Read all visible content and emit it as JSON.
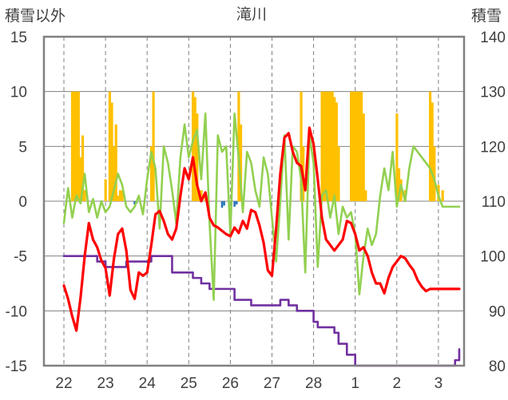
{
  "chart_data": {
    "type": "line",
    "title": "滝川",
    "left_axis_label": "積雪以外",
    "right_axis_label": "積雪",
    "left_axis": {
      "min": -15,
      "max": 15,
      "ticks": [
        "15",
        "10",
        "5",
        "0",
        "-5",
        "-10",
        "-15"
      ]
    },
    "right_axis": {
      "min": 80,
      "max": 140,
      "ticks": [
        "140",
        "130",
        "120",
        "110",
        "100",
        "90",
        "80"
      ]
    },
    "x_days": [
      "22",
      "23",
      "24",
      "25",
      "26",
      "27",
      "28",
      "1",
      "2",
      "3"
    ],
    "colors": {
      "temperature_max": "#ff0000",
      "temperature": "#92d050",
      "snowfall": "#ffc000",
      "precip_negative": "#2e75b6",
      "snow_depth": "#7030a0",
      "frame": "#808080",
      "grid": "#808080"
    },
    "series": [
      {
        "key": "red",
        "axis": "left",
        "x": [
          0,
          0.1,
          0.2,
          0.3,
          0.4,
          0.5,
          0.6,
          0.7,
          0.8,
          0.9,
          1.0,
          1.1,
          1.2,
          1.3,
          1.4,
          1.5,
          1.6,
          1.7,
          1.8,
          1.9,
          2.0,
          2.1,
          2.2,
          2.3,
          2.4,
          2.5,
          2.6,
          2.7,
          2.8,
          2.9,
          3.0,
          3.1,
          3.2,
          3.3,
          3.4,
          3.5,
          3.6,
          3.7,
          3.8,
          3.9,
          4.0,
          4.1,
          4.2,
          4.3,
          4.4,
          4.5,
          4.6,
          4.7,
          4.8,
          4.9,
          5.0,
          5.1,
          5.2,
          5.3,
          5.4,
          5.5,
          5.6,
          5.7,
          5.8,
          5.9,
          6.0,
          6.1,
          6.2,
          6.3,
          6.4,
          6.5,
          6.6,
          6.7,
          6.8,
          6.9,
          7.0,
          7.1,
          7.2,
          7.3,
          7.4,
          7.5,
          7.6,
          7.7,
          7.8,
          7.9,
          8.0,
          8.1,
          8.2,
          8.3,
          8.4,
          8.5,
          8.6,
          8.7,
          8.8,
          8.9,
          9.0,
          9.1,
          9.2,
          9.3,
          9.4,
          9.5
        ],
        "y": [
          -7.7,
          -8.9,
          -10.5,
          -11.8,
          -8.8,
          -5.0,
          -2.0,
          -3.5,
          -4.2,
          -5.4,
          -6.1,
          -8.6,
          -5.3,
          -3.0,
          -2.5,
          -4.5,
          -8.1,
          -8.9,
          -6.5,
          -6.8,
          -6.5,
          -4.0,
          -1.2,
          -0.9,
          -1.8,
          -3.0,
          -3.5,
          -2.5,
          0.5,
          3.0,
          2.0,
          4.0,
          1.5,
          0.0,
          0.8,
          -1.5,
          -2.2,
          -2.4,
          -2.7,
          -3.0,
          -3.2,
          -2.4,
          -2.9,
          -1.8,
          -2.5,
          -0.8,
          -1.0,
          -2.2,
          -3.8,
          -6.3,
          -6.8,
          -2.5,
          2.5,
          5.8,
          6.2,
          4.5,
          3.5,
          3.2,
          1.0,
          6.7,
          5.2,
          2.0,
          -1.5,
          -3.5,
          -4.0,
          -4.5,
          -4.0,
          -3.5,
          -1.8,
          -2.0,
          -3.0,
          -4.5,
          -4.2,
          -5.0,
          -6.5,
          -7.5,
          -7.5,
          -8.4,
          -7.0,
          -6.0,
          -5.5,
          -5.0,
          -5.2,
          -5.8,
          -6.3,
          -7.2,
          -7.8,
          -8.2,
          -8.0,
          -8.0,
          -8.0,
          -8.0,
          -8.0,
          -8.0,
          -8.0,
          -8.0
        ]
      },
      {
        "key": "green",
        "axis": "left",
        "x": [
          0,
          0.1,
          0.2,
          0.3,
          0.4,
          0.5,
          0.6,
          0.7,
          0.8,
          0.9,
          1.0,
          1.1,
          1.2,
          1.3,
          1.4,
          1.5,
          1.6,
          1.7,
          1.8,
          1.9,
          2.0,
          2.1,
          2.2,
          2.3,
          2.4,
          2.5,
          2.6,
          2.7,
          2.8,
          2.9,
          3.0,
          3.1,
          3.2,
          3.3,
          3.4,
          3.5,
          3.6,
          3.7,
          3.8,
          3.9,
          4.0,
          4.1,
          4.2,
          4.3,
          4.4,
          4.5,
          4.6,
          4.7,
          4.8,
          4.9,
          5.0,
          5.1,
          5.2,
          5.3,
          5.4,
          5.5,
          5.6,
          5.7,
          5.8,
          5.9,
          6.0,
          6.1,
          6.2,
          6.3,
          6.4,
          6.5,
          6.6,
          6.7,
          6.8,
          6.9,
          7.0,
          7.1,
          7.2,
          7.3,
          7.4,
          7.5,
          7.6,
          7.7,
          7.8,
          7.9,
          8.0,
          8.1,
          8.2,
          8.3,
          8.4,
          8.5,
          8.6,
          8.7,
          8.8,
          8.9,
          9.0,
          9.1,
          9.2,
          9.3,
          9.4,
          9.5
        ],
        "y": [
          -2.0,
          1.2,
          -1.5,
          0.5,
          -0.2,
          2.5,
          -1.0,
          0.2,
          -1.5,
          0.0,
          -1.0,
          -0.5,
          1.0,
          2.5,
          1.5,
          -0.5,
          -1.0,
          -0.5,
          0.5,
          -1.2,
          2.0,
          4.5,
          3.0,
          -2.5,
          5.0,
          3.5,
          1.0,
          -2.0,
          4.0,
          7.0,
          4.0,
          5.5,
          6.5,
          2.0,
          8.0,
          -2.0,
          -9.0,
          6.0,
          4.5,
          5.0,
          -3.0,
          8.0,
          4.0,
          -1.0,
          4.5,
          3.5,
          1.0,
          -0.5,
          4.0,
          2.5,
          -1.5,
          -5.5,
          0.0,
          6.0,
          -3.5,
          5.0,
          4.5,
          2.0,
          -6.5,
          6.0,
          3.5,
          -6.0,
          0.5,
          1.0,
          -1.5,
          0.5,
          -3.0,
          -0.5,
          -1.5,
          -1.0,
          -3.0,
          -8.5,
          -5.0,
          -2.5,
          -4.0,
          -3.0,
          0.5,
          3.0,
          1.0,
          4.5,
          -0.5,
          1.5,
          0.0,
          3.0,
          5.0,
          4.5,
          4.0,
          3.5,
          3.0,
          2.0,
          0.5,
          -0.5,
          -0.5,
          -0.5,
          -0.5,
          -0.5
        ]
      },
      {
        "key": "purple",
        "axis": "right",
        "x": [
          0,
          0.5,
          0.8,
          1.0,
          1.4,
          1.5,
          1.9,
          2.1,
          2.3,
          2.6,
          2.8,
          3.0,
          3.1,
          3.3,
          3.5,
          3.8,
          4.0,
          4.1,
          4.3,
          4.5,
          4.9,
          5.2,
          5.4,
          5.6,
          5.9,
          6.0,
          6.1,
          6.5,
          6.6,
          6.8,
          7.0,
          7.2,
          7.4,
          7.6,
          7.8,
          8.0,
          8.2,
          8.5,
          8.7,
          8.9,
          9.0,
          9.1,
          9.2,
          9.4,
          9.5
        ],
        "y": [
          100,
          100,
          99,
          98,
          98,
          99,
          99,
          100,
          100,
          97,
          97,
          97,
          96,
          95,
          94,
          94,
          94,
          92,
          92,
          91,
          91,
          92,
          91,
          90,
          90,
          88,
          87,
          86,
          84,
          82,
          80,
          80,
          80,
          80,
          80,
          80,
          80,
          80,
          80,
          80,
          80,
          80,
          80,
          81,
          83
        ]
      }
    ],
    "snowfall_bars": {
      "axis": "left",
      "x": [
        0.2,
        0.25,
        0.3,
        0.35,
        0.4,
        0.45,
        0.5,
        1.0,
        1.1,
        1.15,
        1.2,
        1.25,
        1.3,
        1.35,
        1.4,
        2.1,
        2.15,
        3.1,
        3.15,
        3.2,
        3.25,
        3.3,
        3.4,
        4.2,
        4.25,
        5.7,
        5.75,
        6.2,
        6.25,
        6.3,
        6.35,
        6.4,
        6.45,
        6.5,
        6.55,
        6.6,
        6.9,
        6.95,
        7.0,
        7.05,
        7.1,
        7.15,
        7.2,
        7.25,
        8.0,
        8.05,
        8.1,
        8.2,
        8.8,
        8.85,
        8.9,
        9.0,
        9.1
      ],
      "y": [
        10.0,
        10.0,
        10.0,
        10.0,
        4.0,
        6.0,
        1.0,
        2.0,
        10.0,
        9.0,
        5.0,
        7.0,
        0.5,
        1.0,
        1.0,
        5.0,
        10.0,
        10.0,
        9.5,
        8.0,
        1.0,
        1.0,
        0.8,
        10.0,
        7.0,
        10.0,
        5.0,
        10.0,
        10.0,
        10.0,
        10.0,
        10.0,
        10.0,
        9.5,
        9.0,
        5.0,
        10.0,
        10.0,
        10.0,
        10.0,
        10.0,
        10.0,
        8.0,
        1.0,
        8.0,
        3.0,
        2.0,
        1.0,
        10.0,
        9.0,
        5.0,
        1.5,
        1.0
      ]
    },
    "negative_bars": {
      "axis": "left",
      "x": [
        1.7,
        1.75,
        3.8,
        3.85,
        4.1,
        4.15
      ],
      "y": [
        -0.3,
        -0.2,
        -0.6,
        -0.4,
        -0.5,
        -0.3
      ]
    }
  }
}
